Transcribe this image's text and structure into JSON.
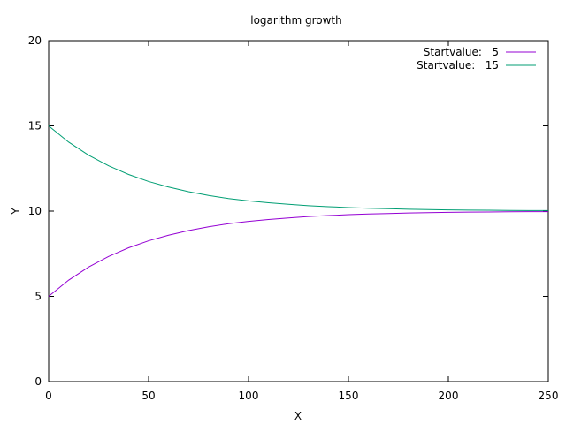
{
  "chart_data": {
    "type": "line",
    "title": "logarithm growth",
    "xlabel": "X",
    "ylabel": "Y",
    "xlim": [
      0,
      250
    ],
    "ylim": [
      0,
      20
    ],
    "xticks": [
      "0",
      "50",
      "100",
      "150",
      "200",
      "250"
    ],
    "yticks": [
      "0",
      "5",
      "10",
      "15",
      "20"
    ],
    "grid": false,
    "legend_position": "top-right",
    "x": [
      0,
      10,
      20,
      30,
      40,
      50,
      60,
      70,
      80,
      90,
      100,
      110,
      120,
      130,
      140,
      150,
      160,
      170,
      180,
      190,
      200,
      210,
      220,
      230,
      240,
      250
    ],
    "series": [
      {
        "name": "Startvalue:   5",
        "color": "#9400d3",
        "values": [
          5.0,
          5.95,
          6.72,
          7.34,
          7.85,
          8.26,
          8.59,
          8.86,
          9.08,
          9.26,
          9.4,
          9.51,
          9.6,
          9.68,
          9.74,
          9.79,
          9.83,
          9.86,
          9.89,
          9.91,
          9.93,
          9.94,
          9.95,
          9.96,
          9.97,
          9.97
        ]
      },
      {
        "name": "Startvalue:   15",
        "color": "#009e73",
        "values": [
          15.0,
          14.05,
          13.28,
          12.66,
          12.15,
          11.74,
          11.41,
          11.14,
          10.92,
          10.74,
          10.6,
          10.49,
          10.4,
          10.32,
          10.26,
          10.21,
          10.17,
          10.14,
          10.11,
          10.09,
          10.07,
          10.06,
          10.05,
          10.04,
          10.03,
          10.03
        ]
      }
    ]
  }
}
